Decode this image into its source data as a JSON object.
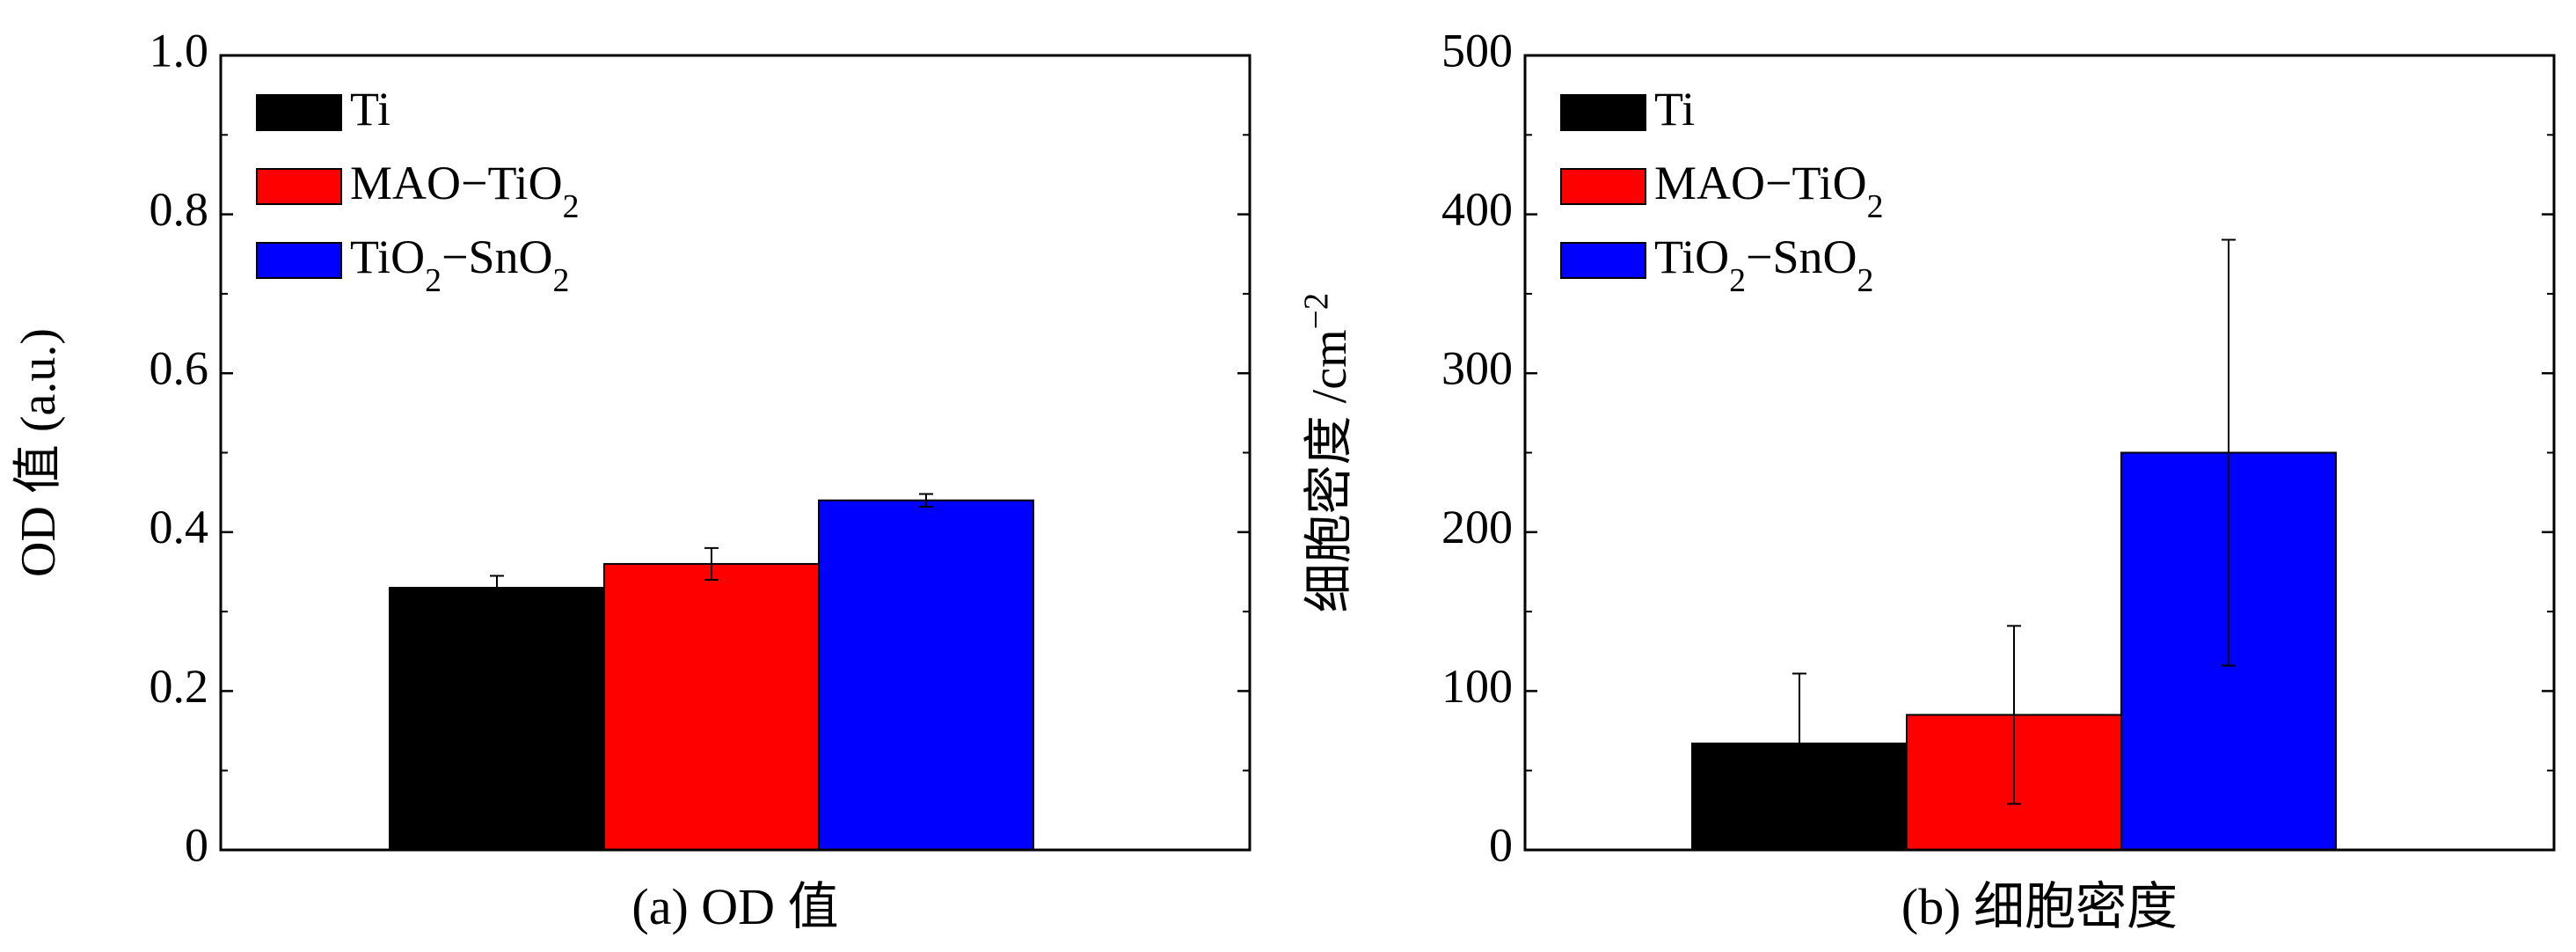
{
  "colors": {
    "ti": "#000000",
    "mao": "#ff0000",
    "sno2": "#0000ff",
    "axis": "#000000",
    "background": "#ffffff"
  },
  "chart_data": [
    {
      "type": "bar",
      "caption": "(a) OD 值",
      "ylabel": "OD 值 (a.u.)",
      "xlabel": "",
      "ylim": [
        0,
        1.0
      ],
      "yticks": [
        0,
        0.2,
        0.4,
        0.6,
        0.8,
        1.0
      ],
      "ytick_labels": [
        "0",
        "0.2",
        "0.4",
        "0.6",
        "0.8",
        "1.0"
      ],
      "grid": false,
      "legend_position": "top-left",
      "series": [
        {
          "name": "Ti",
          "value": 0.33,
          "error": 0.015,
          "color": "#000000"
        },
        {
          "name": "MAO−TiO2",
          "value": 0.36,
          "error": 0.02,
          "color": "#ff0000"
        },
        {
          "name": "TiO2−SnO2",
          "value": 0.44,
          "error": 0.008,
          "color": "#0000ff"
        }
      ]
    },
    {
      "type": "bar",
      "caption": "(b) 细胞密度",
      "ylabel": "细胞密度 /cm−2",
      "xlabel": "",
      "ylim": [
        0,
        500
      ],
      "yticks": [
        0,
        100,
        200,
        300,
        400,
        500
      ],
      "ytick_labels": [
        "0",
        "100",
        "200",
        "300",
        "400",
        "500"
      ],
      "grid": false,
      "legend_position": "top-left",
      "series": [
        {
          "name": "Ti",
          "value": 67,
          "error": 44,
          "color": "#000000"
        },
        {
          "name": "MAO−TiO2",
          "value": 85,
          "error": 56,
          "color": "#ff0000"
        },
        {
          "name": "TiO2−SnO2",
          "value": 250,
          "error": 134,
          "color": "#0000ff"
        }
      ]
    }
  ]
}
